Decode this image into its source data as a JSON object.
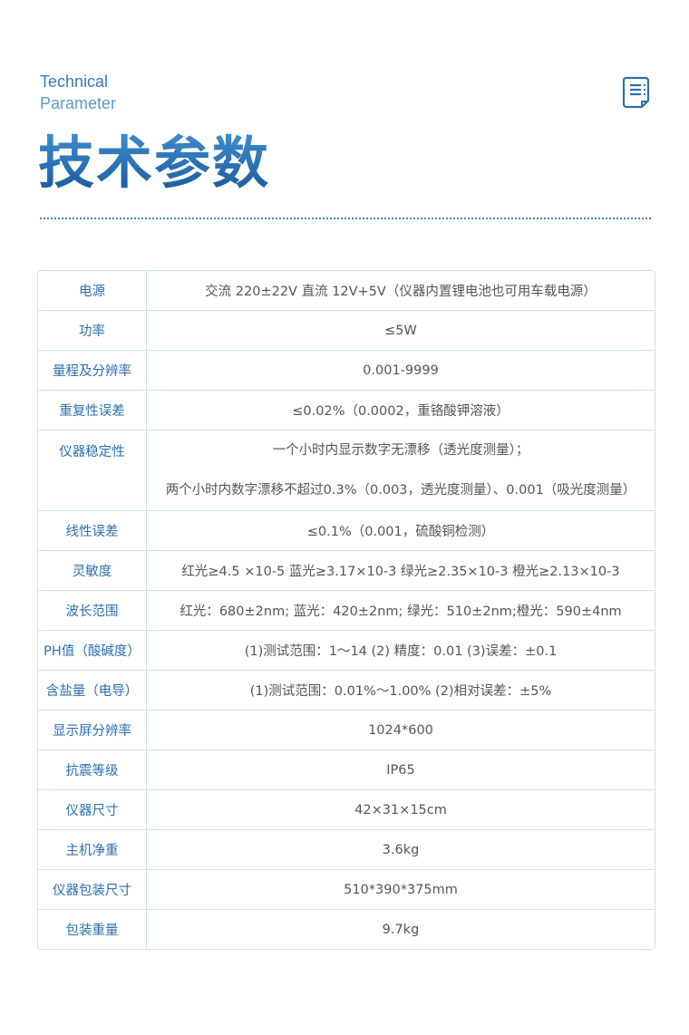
{
  "header": {
    "en_line1": "Technical",
    "en_line2": "Parameter",
    "title": "技术参数",
    "icon": "document-list-icon",
    "accent": "#2a6db0"
  },
  "rows": [
    {
      "label": "电源",
      "values": [
        "交流 220±22V  直流 12V+5V（仪器内置锂电池也可用车载电源）"
      ]
    },
    {
      "label": "功率",
      "values": [
        "≤5W"
      ]
    },
    {
      "label": "量程及分辨率",
      "values": [
        "0.001-9999"
      ]
    },
    {
      "label": "重复性误差",
      "values": [
        "≤0.02%（0.0002，重铬酸钾溶液）"
      ]
    },
    {
      "label": "仪器稳定性",
      "values": [
        "一个小时内显示数字无漂移（透光度测量）；",
        "两个小时内数字漂移不超过0.3%（0.003，透光度测量）、0.001（吸光度测量）"
      ]
    },
    {
      "label": "线性误差",
      "values": [
        "≤0.1%（0.001，硫酸铜检测）"
      ]
    },
    {
      "label": "灵敏度",
      "values": [
        "红光≥4.5 ×10-5  蓝光≥3.17×10-3  绿光≥2.35×10-3  橙光≥2.13×10-3"
      ]
    },
    {
      "label": "波长范围",
      "values": [
        "红光：680±2nm; 蓝光：420±2nm; 绿光：510±2nm;橙光：590±4nm"
      ]
    },
    {
      "label": "PH值（酸碱度）",
      "values": [
        "(1)测试范围：1～14  (2) 精度：0.01  (3)误差：±0.1"
      ]
    },
    {
      "label": "含盐量（电导）",
      "values": [
        "(1)测试范围：0.01%～1.00%  (2)相对误差：±5%"
      ]
    },
    {
      "label": "显示屏分辨率",
      "values": [
        "1024*600"
      ]
    },
    {
      "label": "抗震等级",
      "values": [
        "IP65"
      ]
    },
    {
      "label": "仪器尺寸",
      "values": [
        "42×31×15cm"
      ]
    },
    {
      "label": "主机净重",
      "values": [
        "3.6kg"
      ]
    },
    {
      "label": "仪器包装尺寸",
      "values": [
        "510*390*375mm"
      ]
    },
    {
      "label": "包装重量",
      "values": [
        "9.7kg"
      ]
    }
  ]
}
